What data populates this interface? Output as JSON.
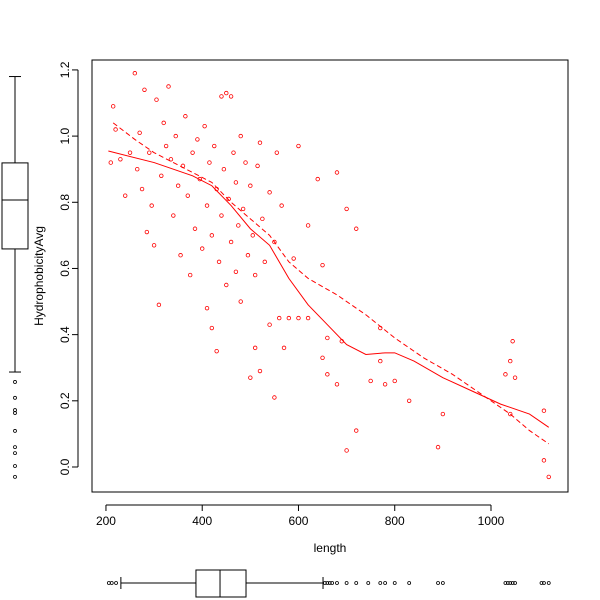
{
  "chart_data": {
    "type": "scatter",
    "x_label": "length",
    "y_label": "HydrophobicityAvg",
    "xlim": [
      171,
      1160
    ],
    "ylim": [
      -0.0756,
      1.23
    ],
    "xticks": [
      200,
      400,
      600,
      800,
      1000
    ],
    "yticks": [
      {
        "value": 0,
        "label": "0.0"
      },
      0.2,
      0.4,
      0.6,
      0.8,
      {
        "value": 1,
        "label": "1.0"
      },
      1.2
    ],
    "color": "#ff0000",
    "x": [
      210,
      215,
      220,
      230,
      240,
      250,
      260,
      265,
      270,
      275,
      280,
      285,
      290,
      295,
      300,
      305,
      310,
      315,
      320,
      325,
      330,
      335,
      340,
      345,
      350,
      355,
      360,
      365,
      370,
      375,
      380,
      385,
      390,
      395,
      400,
      405,
      410,
      410,
      415,
      420,
      420,
      425,
      430,
      430,
      435,
      440,
      440,
      445,
      450,
      450,
      455,
      460,
      460,
      465,
      470,
      470,
      475,
      480,
      480,
      485,
      490,
      495,
      500,
      500,
      505,
      510,
      510,
      515,
      520,
      520,
      525,
      530,
      540,
      540,
      550,
      550,
      555,
      560,
      565,
      570,
      580,
      590,
      600,
      600,
      620,
      620,
      640,
      650,
      650,
      660,
      660,
      680,
      680,
      690,
      700,
      700,
      720,
      720,
      750,
      770,
      770,
      780,
      800,
      830,
      890,
      900,
      1030,
      1040,
      1040,
      1045,
      1050,
      1110,
      1110,
      1120
    ],
    "y": [
      0.92,
      1.09,
      1.02,
      0.93,
      0.82,
      0.95,
      1.19,
      0.9,
      1.01,
      0.84,
      1.14,
      0.71,
      0.95,
      0.79,
      0.67,
      1.11,
      0.49,
      0.88,
      1.04,
      0.97,
      1.15,
      0.93,
      0.76,
      1.0,
      0.85,
      0.64,
      0.91,
      1.06,
      0.82,
      0.58,
      0.95,
      0.72,
      0.99,
      0.87,
      0.66,
      1.03,
      0.48,
      0.79,
      0.92,
      0.42,
      0.7,
      0.97,
      0.35,
      0.84,
      0.62,
      1.12,
      0.76,
      0.9,
      1.13,
      0.55,
      0.81,
      1.12,
      0.68,
      0.95,
      0.59,
      0.86,
      0.73,
      1.0,
      0.5,
      0.78,
      0.92,
      0.64,
      0.27,
      0.85,
      0.7,
      0.36,
      0.58,
      0.91,
      0.29,
      0.98,
      0.75,
      0.62,
      0.43,
      0.83,
      0.21,
      0.68,
      0.95,
      0.45,
      0.79,
      0.36,
      0.45,
      0.63,
      0.97,
      0.45,
      0.73,
      0.45,
      0.87,
      0.61,
      0.33,
      0.39,
      0.28,
      0.89,
      0.25,
      0.38,
      0.78,
      0.05,
      0.72,
      0.11,
      0.26,
      0.32,
      0.42,
      0.25,
      0.26,
      0.2,
      0.06,
      0.16,
      0.28,
      0.32,
      0.16,
      0.38,
      0.27,
      0.17,
      0.02,
      -0.03
    ],
    "lines": [
      {
        "style": "solid",
        "color": "#ff0000",
        "x": [
          205,
          300,
          380,
          420,
          460,
          500,
          540,
          580,
          620,
          660,
          700,
          740,
          780,
          800,
          840,
          900,
          960,
          1020,
          1080,
          1120
        ],
        "y": [
          0.955,
          0.92,
          0.88,
          0.85,
          0.79,
          0.72,
          0.67,
          0.57,
          0.49,
          0.43,
          0.37,
          0.34,
          0.345,
          0.345,
          0.32,
          0.27,
          0.23,
          0.19,
          0.16,
          0.12
        ]
      },
      {
        "style": "dashed",
        "color": "#ff0000",
        "x": [
          215,
          260,
          300,
          340,
          380,
          420,
          460,
          500,
          540,
          580,
          620,
          680,
          740,
          800,
          860,
          920,
          980,
          1040,
          1080,
          1120
        ],
        "y": [
          1.04,
          0.99,
          0.95,
          0.92,
          0.89,
          0.86,
          0.8,
          0.75,
          0.7,
          0.62,
          0.57,
          0.52,
          0.46,
          0.39,
          0.33,
          0.28,
          0.22,
          0.16,
          0.11,
          0.07
        ]
      }
    ],
    "y_boxplot": {
      "min": 0.287,
      "q1": 0.659,
      "median": 0.807,
      "q3": 0.919,
      "max": 1.18,
      "outliers": [
        0.257,
        0.209,
        0.172,
        0.163,
        0.109,
        0.06,
        0.042,
        0.003,
        -0.03
      ]
    },
    "x_boxplot": {
      "min": 231,
      "q1": 387,
      "median": 437,
      "q3": 491,
      "max": 651,
      "outliers": [
        206,
        212,
        221,
        655,
        660,
        665,
        670,
        680,
        700,
        720,
        745,
        770,
        780,
        800,
        830,
        890,
        900,
        1030,
        1035,
        1040,
        1045,
        1050,
        1105,
        1110,
        1120
      ]
    }
  }
}
